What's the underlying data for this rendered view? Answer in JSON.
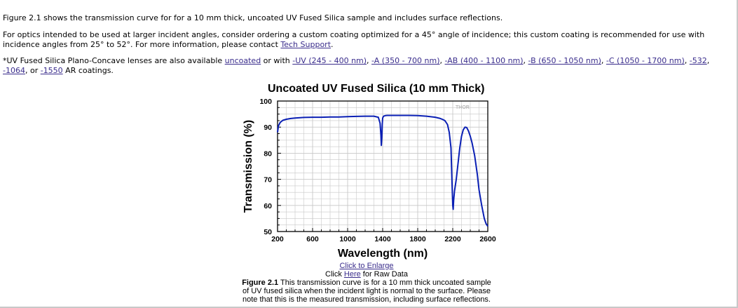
{
  "intro": {
    "p1": "Figure 2.1 shows the transmission curve for for a 10 mm thick, uncoated UV Fused Silica sample and includes surface reflections.",
    "p2_text": "For optics intended to be used at larger incident angles, consider ordering a custom coating optimized for a 45° angle of incidence; this custom coating is recommended for use with incidence angles from 25° to 52°. For more information, please contact ",
    "p2_link": "Tech Support",
    "p2_end": ".",
    "p3_prefix": "*UV Fused Silica Plano-Concave lenses are also available ",
    "uncoated_link": "uncoated",
    "or_with": " or with ",
    "coating_links": [
      "-UV (245 - 400 nm)",
      "-A (350 - 700 nm)",
      "-AB (400 - 1100 nm)",
      "-B (650 - 1050 nm)",
      "-C (1050 - 1700 nm)",
      "-532",
      "-1064",
      "-1550"
    ],
    "sep_comma": ", ",
    "sep_comma_space": ",  ",
    "sep_or": ", or ",
    "p3_suffix": " AR coatings."
  },
  "figure": {
    "enlarge_link": "Click to Enlarge",
    "raw_prefix": "Click ",
    "raw_link": "Here",
    "raw_suffix": " for Raw Data",
    "caption_label": "Figure 2.1",
    "caption_text": "  This transmission curve is for a 10 mm thick uncoated sample of UV fused silica when the incident light is normal to the surface. Please note that this is the measured transmission, including surface reflections."
  },
  "colors": {
    "curve": "#0a1fb4",
    "link": "#3a2d8c",
    "grid": "#c8c8c8"
  },
  "chart_data": {
    "type": "line",
    "title": "Uncoated UV Fused Silica (10 mm Thick)",
    "xlabel": "Wavelength (nm)",
    "ylabel": "Transmission (%)",
    "xlim": [
      200,
      2600
    ],
    "ylim": [
      50,
      100
    ],
    "xticks": [
      200,
      600,
      1000,
      1400,
      1800,
      2200,
      2600
    ],
    "yticks": [
      50,
      60,
      70,
      80,
      90,
      100
    ],
    "grid": true,
    "watermark": "THOR",
    "series": [
      {
        "x": [
          200,
          210,
          230,
          260,
          300,
          350,
          400,
          500,
          600,
          700,
          800,
          900,
          1000,
          1100,
          1200,
          1300,
          1350,
          1370,
          1380,
          1385,
          1390,
          1395,
          1400,
          1410,
          1430,
          1450,
          1500,
          1600,
          1700,
          1800,
          1900,
          2000,
          2050,
          2080,
          2110,
          2140,
          2160,
          2180,
          2190,
          2200,
          2205,
          2210,
          2220,
          2240,
          2260,
          2280,
          2300,
          2320,
          2340,
          2360,
          2380,
          2400,
          2420,
          2450,
          2480,
          2500,
          2530,
          2560,
          2580,
          2600
        ],
        "y": [
          88,
          90.5,
          91.8,
          92.6,
          93,
          93.3,
          93.5,
          93.7,
          93.8,
          93.8,
          93.9,
          93.9,
          94,
          94.1,
          94.2,
          94.2,
          93.8,
          91.5,
          87,
          83,
          86,
          91,
          93.5,
          94.2,
          94.4,
          94.5,
          94.5,
          94.5,
          94.5,
          94.4,
          94.2,
          93.8,
          93.4,
          93,
          92.5,
          91,
          88,
          82,
          70,
          60,
          58.5,
          62,
          65.5,
          70,
          76,
          82,
          86.5,
          89,
          90,
          89.8,
          88.5,
          86.5,
          84,
          79,
          72,
          66,
          60,
          55,
          53,
          52
        ]
      }
    ]
  }
}
